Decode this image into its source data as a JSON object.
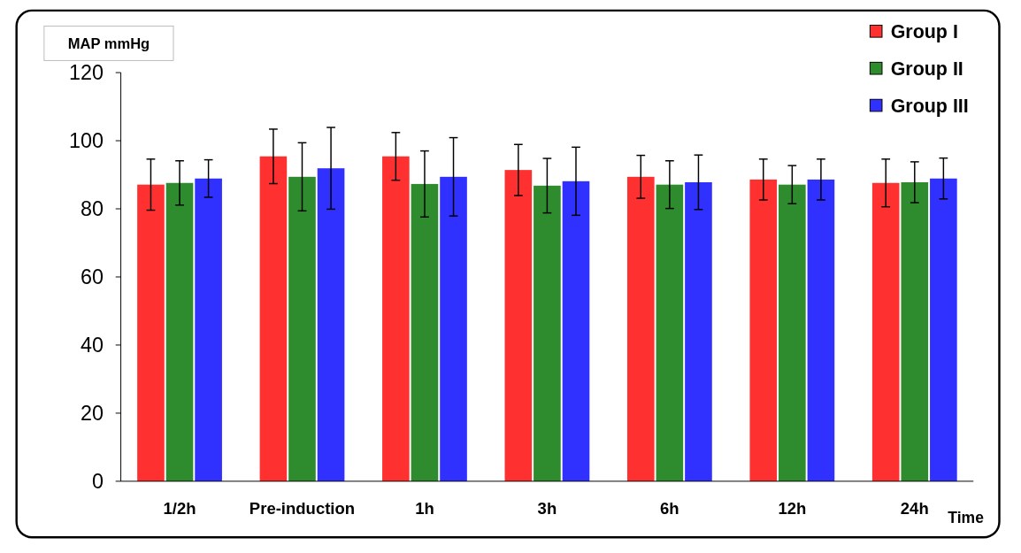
{
  "chart_data": {
    "type": "bar",
    "ylabel": "MAP mmHg",
    "xlabel": "Time",
    "categories": [
      "1/2h",
      "Pre-induction",
      "1h",
      "3h",
      "6h",
      "12h",
      "24h"
    ],
    "series": [
      {
        "name": "Group I",
        "color": "#ff3030",
        "values": [
          87.1,
          95.4,
          95.4,
          91.4,
          89.4,
          88.6,
          87.6
        ],
        "errors": [
          7.5,
          8,
          7,
          7.5,
          6.3,
          6,
          7
        ]
      },
      {
        "name": "Group II",
        "color": "#2e8b2e",
        "values": [
          87.6,
          89.4,
          87.3,
          86.8,
          87.1,
          87.1,
          87.8
        ],
        "errors": [
          6.5,
          10,
          9.7,
          8,
          7,
          5.6,
          6
        ]
      },
      {
        "name": "Group III",
        "color": "#3030ff",
        "values": [
          88.9,
          91.9,
          89.4,
          88.1,
          87.8,
          88.6,
          88.9
        ],
        "errors": [
          5.5,
          12,
          11.5,
          10,
          8,
          6,
          6
        ]
      }
    ],
    "ylim": [
      0,
      120
    ],
    "yticks": [
      0,
      20,
      40,
      60,
      80,
      100,
      120
    ],
    "grid": false,
    "legend": "top right"
  }
}
